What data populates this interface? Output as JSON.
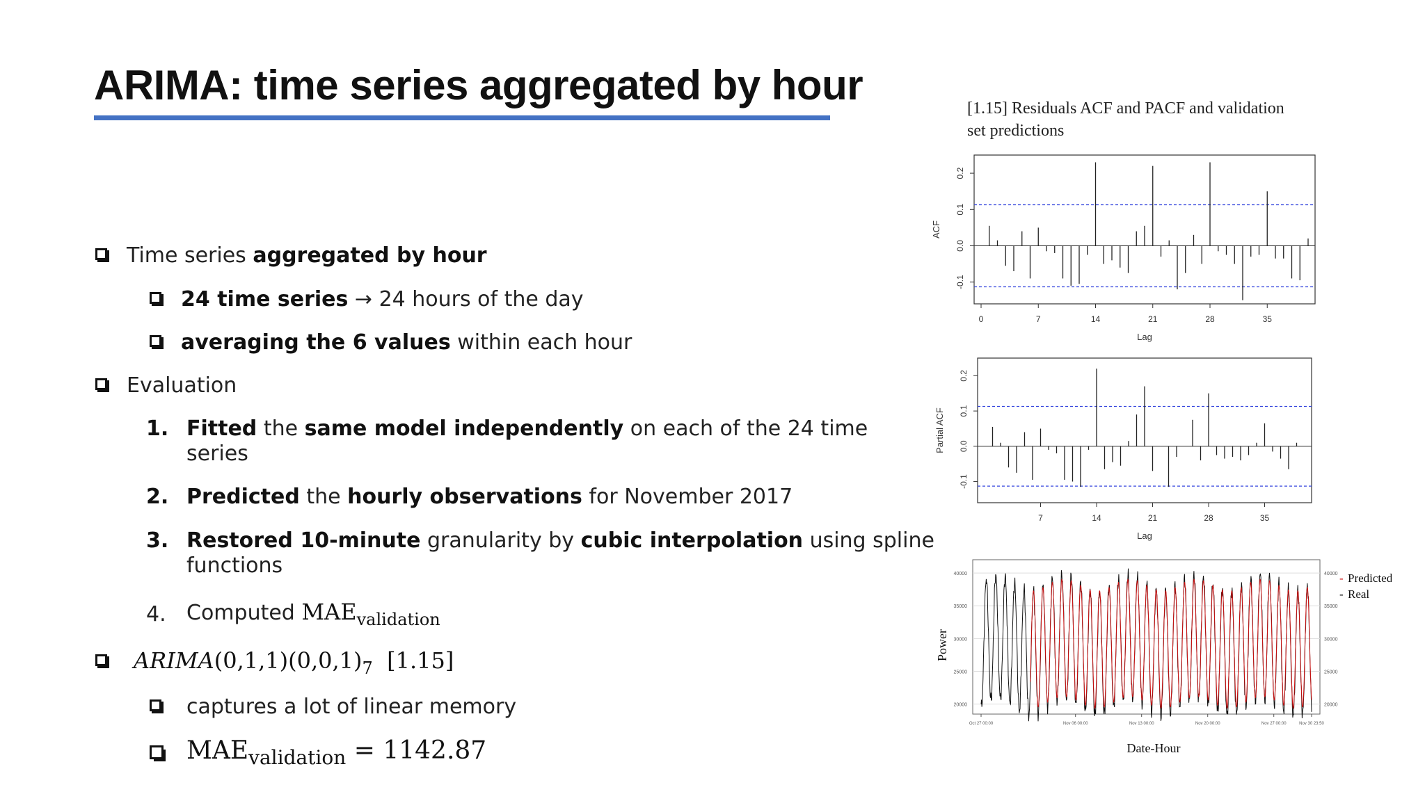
{
  "slide": {
    "title": "ARIMA: time series aggregated by hour",
    "accent_color": "#4472c4"
  },
  "bullets": {
    "b1_pre": "Time series ",
    "b1_bold": "aggregated by hour",
    "b1a_bold": "24 time series",
    "b1a_rest": " → 24 hours of the day",
    "b1b_bold": "averaging the 6 values",
    "b1b_rest": " within each hour",
    "b2": "Evaluation",
    "n1": "1.",
    "e1_bold1": "Fitted",
    "e1_t1": " the ",
    "e1_bold2": "same model independently",
    "e1_t2": " on each of the 24 time",
    "e1_line2": "series",
    "n2": "2.",
    "e2_bold1": "Predicted",
    "e2_t1": " the ",
    "e2_bold2": "hourly observations",
    "e2_t2": " for November 2017",
    "n3": "3.",
    "e3_bold1": "Restored 10-minute",
    "e3_t1": " granularity by ",
    "e3_bold2": "cubic interpolation",
    "e3_t2": " using spline",
    "e3_line2": "functions",
    "n4": "4.",
    "e4_text": "Computed ",
    "e4_mae": "MAE",
    "e4_sub": "validation",
    "b3_model": "ARIMA",
    "b3_rest": "(0,1,1)(0,0,1)",
    "b3_sub": "7",
    "b3_ref": "[1.15]",
    "b3a": "captures a lot of linear memory",
    "b3b_mae": "MAE",
    "b3b_sub": "validation",
    "b3b_val": " = 1142.87"
  },
  "figure": {
    "caption_line1": "[1.15] Residuals ACF and PACF and validation",
    "caption_line2": "set predictions",
    "acf": {
      "ylabel": "ACF",
      "xlabel": "Lag",
      "xticks": [
        "0",
        "7",
        "14",
        "21",
        "28",
        "35"
      ],
      "yticks": [
        "-0.1",
        "0.0",
        "0.1",
        "0.2"
      ],
      "ci": 0.113,
      "values": [
        0.055,
        0.015,
        -0.055,
        -0.07,
        0.04,
        -0.09,
        0.05,
        -0.015,
        -0.02,
        -0.09,
        -0.11,
        -0.105,
        -0.025,
        0.23,
        -0.05,
        -0.04,
        -0.06,
        -0.075,
        0.04,
        0.055,
        0.22,
        -0.03,
        0.015,
        -0.12,
        -0.075,
        0.03,
        -0.05,
        0.23,
        -0.015,
        -0.025,
        -0.05,
        -0.15,
        -0.03,
        -0.025,
        0.15,
        -0.035,
        -0.035,
        -0.09,
        -0.095,
        0.02
      ]
    },
    "pacf": {
      "ylabel": "Partial ACF",
      "xlabel": "Lag",
      "xticks": [
        "7",
        "14",
        "21",
        "28",
        "35"
      ],
      "yticks": [
        "-0.1",
        "0.0",
        "0.1",
        "0.2"
      ],
      "ci": 0.113,
      "values": [
        0.055,
        0.01,
        -0.06,
        -0.075,
        0.04,
        -0.095,
        0.05,
        -0.01,
        -0.02,
        -0.095,
        -0.1,
        -0.115,
        -0.01,
        0.22,
        -0.065,
        -0.045,
        -0.055,
        0.015,
        0.09,
        0.17,
        -0.07,
        0.0,
        -0.115,
        -0.03,
        0.0,
        0.075,
        -0.04,
        0.15,
        -0.025,
        -0.035,
        -0.03,
        -0.04,
        -0.025,
        0.01,
        0.065,
        -0.015,
        -0.035,
        -0.065,
        0.01
      ]
    },
    "ts": {
      "ylabel": "Power",
      "xlabel": "Date-Hour",
      "yticks": [
        "20000",
        "25000",
        "30000",
        "35000",
        "40000"
      ],
      "xticks": [
        "Oct 27 00:00",
        "Nov 06 00:00",
        "Nov 13 00:00",
        "Nov 20 00:00",
        "Nov 27 00:00",
        "Nov 30 23:50"
      ],
      "legend": [
        "Predicted",
        "Real"
      ],
      "pred_color": "#cc1111",
      "real_color": "#111111"
    }
  },
  "chart_data": [
    {
      "type": "bar",
      "ylabel": "ACF",
      "xlabel": "Lag",
      "x": [
        1,
        2,
        3,
        4,
        5,
        6,
        7,
        8,
        9,
        10,
        11,
        12,
        13,
        14,
        15,
        16,
        17,
        18,
        19,
        20,
        21,
        22,
        23,
        24,
        25,
        26,
        27,
        28,
        29,
        30,
        31,
        32,
        33,
        34,
        35,
        36,
        37,
        38,
        39,
        40
      ],
      "values": [
        0.055,
        0.015,
        -0.055,
        -0.07,
        0.04,
        -0.09,
        0.05,
        -0.015,
        -0.02,
        -0.09,
        -0.11,
        -0.105,
        -0.025,
        0.23,
        -0.05,
        -0.04,
        -0.06,
        -0.075,
        0.04,
        0.055,
        0.22,
        -0.03,
        0.015,
        -0.12,
        -0.075,
        0.03,
        -0.05,
        0.23,
        -0.015,
        -0.025,
        -0.05,
        -0.15,
        -0.03,
        -0.025,
        0.15,
        -0.035,
        -0.035,
        -0.09,
        -0.095,
        0.02
      ],
      "ylim": [
        -0.16,
        0.25
      ]
    },
    {
      "type": "bar",
      "ylabel": "Partial ACF",
      "xlabel": "Lag",
      "x": [
        1,
        2,
        3,
        4,
        5,
        6,
        7,
        8,
        9,
        10,
        11,
        12,
        13,
        14,
        15,
        16,
        17,
        18,
        19,
        20,
        21,
        22,
        23,
        24,
        25,
        26,
        27,
        28,
        29,
        30,
        31,
        32,
        33,
        34,
        35,
        36,
        37,
        38,
        39
      ],
      "values": [
        0.055,
        0.01,
        -0.06,
        -0.075,
        0.04,
        -0.095,
        0.05,
        -0.01,
        -0.02,
        -0.095,
        -0.1,
        -0.115,
        -0.01,
        0.22,
        -0.065,
        -0.045,
        -0.055,
        0.015,
        0.09,
        0.17,
        -0.07,
        0.0,
        -0.115,
        -0.03,
        0.0,
        0.075,
        -0.04,
        0.15,
        -0.025,
        -0.035,
        -0.03,
        -0.04,
        -0.025,
        0.01,
        0.065,
        -0.015,
        -0.035,
        -0.065,
        0.01
      ],
      "ylim": [
        -0.16,
        0.25
      ]
    },
    {
      "type": "line",
      "ylabel": "Power",
      "xlabel": "Date-Hour",
      "ylim": [
        19000,
        41500
      ],
      "series": [
        {
          "name": "Predicted"
        },
        {
          "name": "Real"
        }
      ]
    }
  ]
}
